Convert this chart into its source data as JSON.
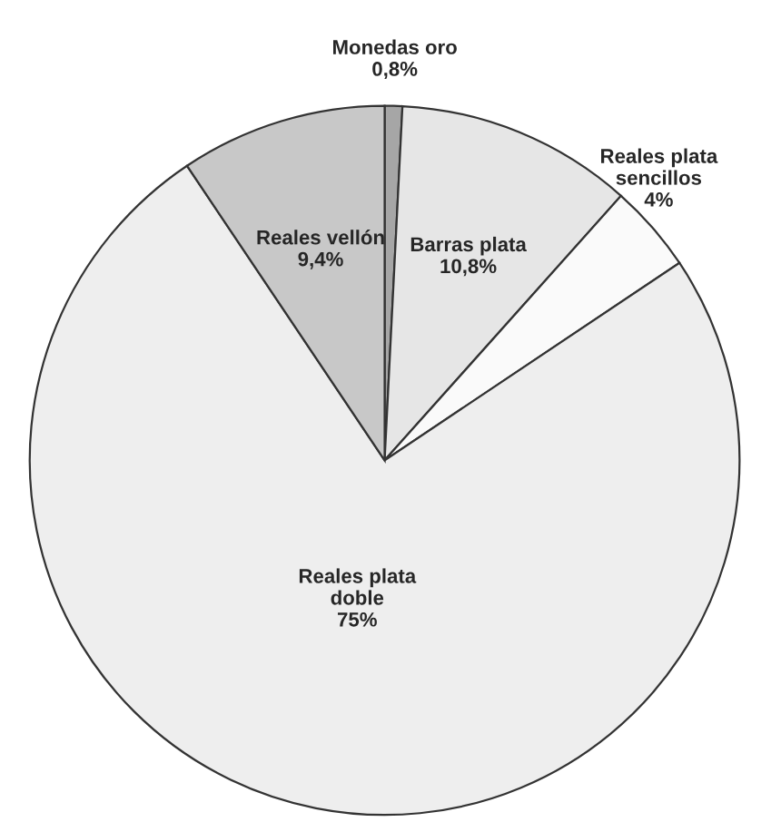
{
  "chart_data": {
    "type": "pie",
    "categories": [
      "Monedas oro",
      "Barras plata",
      "Reales plata\nsencillos",
      "Reales plata\ndoble",
      "Reales vellón"
    ],
    "values": [
      0.8,
      10.8,
      4,
      75,
      9.4
    ],
    "value_labels": [
      "0,8%",
      "10,8%",
      "4%",
      "75%",
      "9,4%"
    ],
    "colors": [
      "#a6a6a6",
      "#e6e6e6",
      "#fafafa",
      "#eeeeee",
      "#c8c8c8"
    ]
  }
}
